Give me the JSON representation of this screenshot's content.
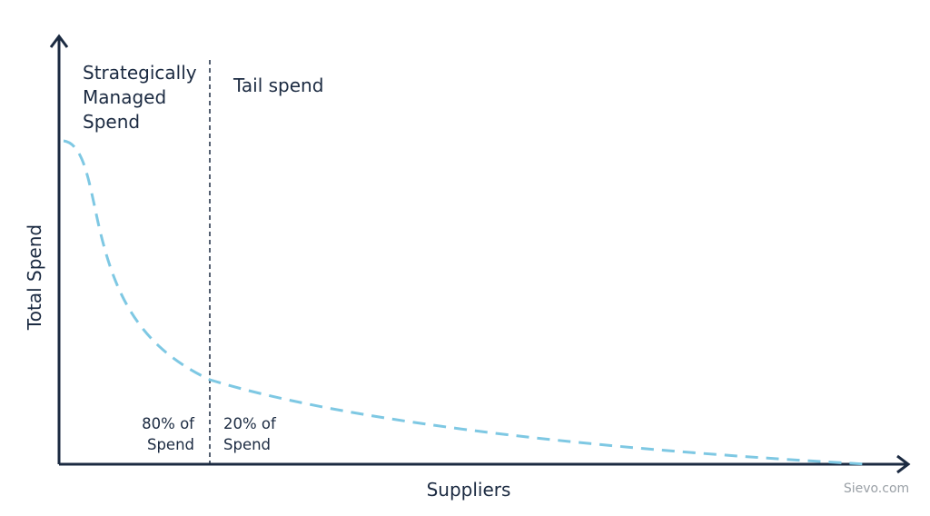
{
  "axes": {
    "y_label": "Total Spend",
    "x_label": "Suppliers"
  },
  "regions": [
    {
      "title": [
        "Strategically",
        "Managed",
        "Spend"
      ],
      "share": [
        "80% of",
        "Spend"
      ]
    },
    {
      "title": [
        "Tail spend"
      ],
      "share": [
        "20% of",
        "Spend"
      ]
    }
  ],
  "footer": {
    "source": "Sievo.com"
  }
}
